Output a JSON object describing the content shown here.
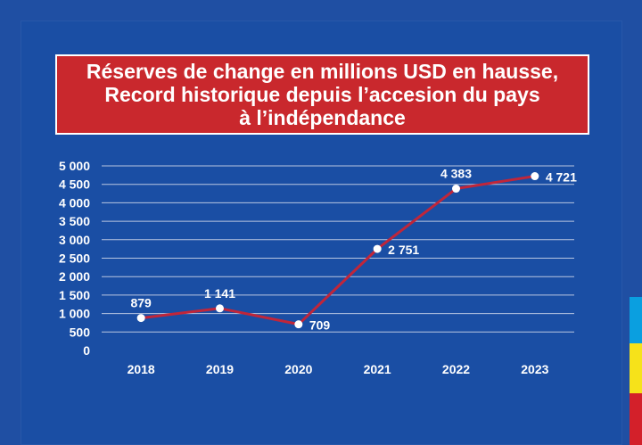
{
  "title": {
    "line1": "Réserves de change en millions USD en hausse,",
    "line2": "Record historique depuis l’accesion du pays",
    "line3": "à l’indépendance"
  },
  "colors": {
    "background": "#1f4fa3",
    "title_box": "#c9282d",
    "line": "#c0263a",
    "marker": "#ffffff",
    "grid": "#d5dcec",
    "flag_blue": "#0a9fe0",
    "flag_yellow": "#f6e21a",
    "flag_red": "#d3202a"
  },
  "chart_data": {
    "type": "line",
    "title": "Réserves de change en millions USD en hausse, Record historique depuis l’accesion du pays à l’indépendance",
    "xlabel": "",
    "ylabel": "",
    "categories": [
      "2018",
      "2019",
      "2020",
      "2021",
      "2022",
      "2023"
    ],
    "values": [
      879,
      1141,
      709,
      2751,
      4383,
      4721
    ],
    "value_labels": [
      "879",
      "1 141",
      "709",
      "2 751",
      "4 383",
      "4 721"
    ],
    "ylim": [
      0,
      5000
    ],
    "yticks": [
      0,
      500,
      1000,
      1500,
      2000,
      2500,
      3000,
      3500,
      4000,
      4500,
      5000
    ],
    "ytick_labels": [
      "0",
      "500",
      "1 000",
      "1 500",
      "2 000",
      "2 500",
      "3 000",
      "3 500",
      "4 000",
      "4 500",
      "5 000"
    ],
    "grid": true,
    "legend": "none"
  }
}
